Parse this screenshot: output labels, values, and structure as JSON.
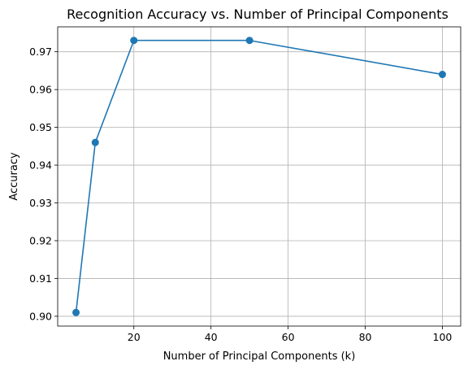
{
  "chart_data": {
    "type": "line",
    "title": "Recognition Accuracy vs. Number of Principal Components",
    "xlabel": "Number of Principal Components (k)",
    "ylabel": "Accuracy",
    "xlim": [
      0.25,
      104.75
    ],
    "ylim": [
      0.8974,
      0.9766
    ],
    "xticks": [
      20,
      40,
      60,
      80,
      100
    ],
    "yticks": [
      0.9,
      0.91,
      0.92,
      0.93,
      0.94,
      0.95,
      0.96,
      0.97
    ],
    "xtick_labels": [
      "20",
      "40",
      "60",
      "80",
      "100"
    ],
    "ytick_labels": [
      "0.90",
      "0.91",
      "0.92",
      "0.93",
      "0.94",
      "0.95",
      "0.96",
      "0.97"
    ],
    "grid": true,
    "legend": false,
    "series": [
      {
        "color": "#1f77b4",
        "marker": "circle",
        "x": [
          5,
          10,
          20,
          50,
          100
        ],
        "y": [
          0.901,
          0.946,
          0.973,
          0.973,
          0.964
        ]
      }
    ]
  }
}
